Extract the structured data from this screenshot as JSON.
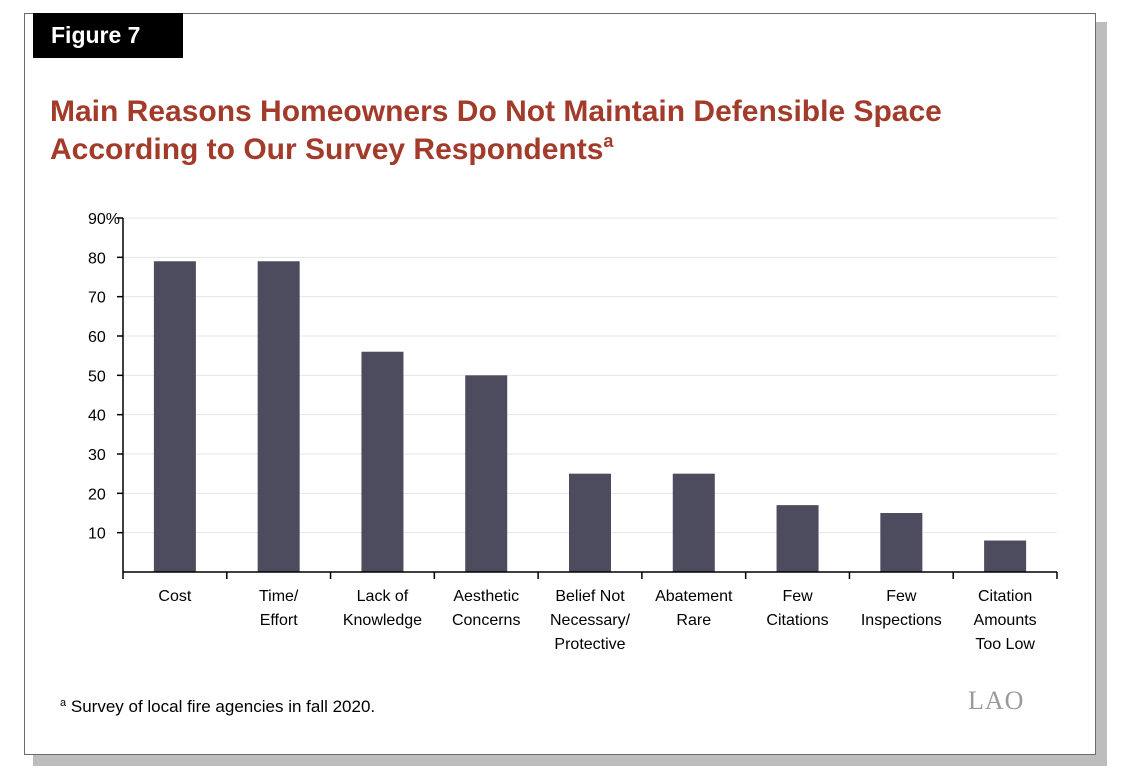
{
  "figure_label": "Figure 7",
  "title_text": "Main Reasons Homeowners Do Not Maintain Defensible Space According to Our Survey Respondents",
  "title_note_marker": "a",
  "footnote": {
    "marker": "a",
    "text": "Survey of local fire agencies in fall 2020."
  },
  "logo_text": "LAO",
  "colors": {
    "bar": "#4d4b5e",
    "title": "#a23b2a",
    "grid": "#e6e6e6",
    "axis": "#000000"
  },
  "chart_data": {
    "type": "bar",
    "categories": [
      [
        "Cost"
      ],
      [
        "Time/",
        "Effort"
      ],
      [
        "Lack of",
        "Knowledge"
      ],
      [
        "Aesthetic",
        "Concerns"
      ],
      [
        "Belief Not",
        "Necessary/",
        "Protective"
      ],
      [
        "Abatement",
        "Rare"
      ],
      [
        "Few",
        "Citations"
      ],
      [
        "Few",
        "Inspections"
      ],
      [
        "Citation",
        "Amounts",
        "Too Low"
      ]
    ],
    "values": [
      79,
      79,
      56,
      50,
      25,
      25,
      17,
      15,
      8
    ],
    "title": "Main Reasons Homeowners Do Not Maintain Defensible Space According to Our Survey Respondents",
    "xlabel": "",
    "ylabel": "",
    "ylim": [
      0,
      90
    ],
    "yticks": [
      10,
      20,
      30,
      40,
      50,
      60,
      70,
      80,
      90
    ],
    "ytick_labels": [
      "10",
      "20",
      "30",
      "40",
      "50",
      "60",
      "70",
      "80",
      "90%"
    ],
    "grid": true,
    "legend": "none"
  }
}
